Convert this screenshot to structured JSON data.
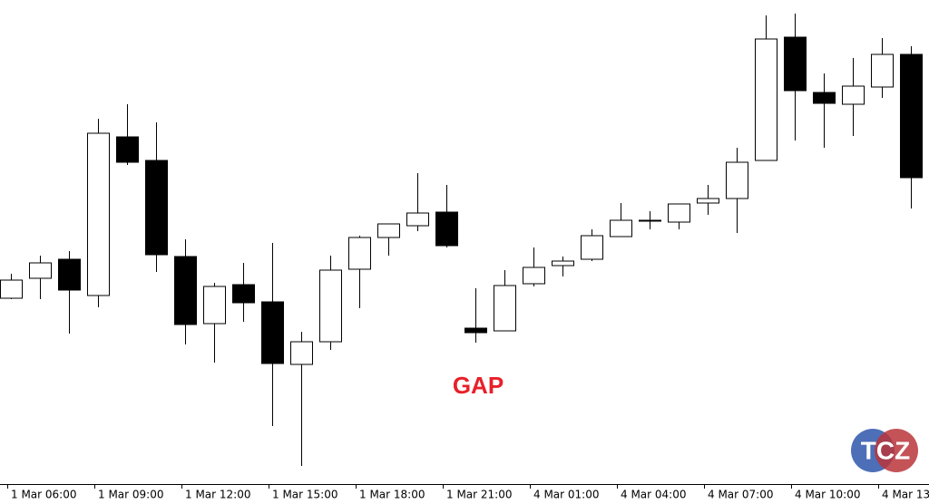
{
  "chart_data": {
    "type": "candlestick",
    "annotation": "GAP",
    "watermark": "TCZ",
    "categories": [
      "1 Mar 06:00",
      null,
      null,
      "1 Mar 09:00",
      null,
      null,
      "1 Mar 12:00",
      null,
      null,
      "1 Mar 15:00",
      null,
      null,
      "1 Mar 18:00",
      null,
      null,
      "1 Mar 21:00",
      null,
      null,
      "4 Mar 01:00",
      null,
      null,
      "4 Mar 04:00",
      null,
      null,
      "4 Mar 07:00",
      null,
      null,
      "4 Mar 10:00",
      null,
      null,
      "4 Mar 13:",
      null
    ],
    "open": [
      227,
      249,
      270,
      230,
      405,
      379,
      273,
      199,
      242,
      223,
      154,
      179,
      259,
      294,
      307,
      322,
      194,
      191,
      243,
      263,
      270,
      295,
      312,
      311,
      332,
      337,
      379,
      515,
      454,
      441,
      460,
      496
    ],
    "high": [
      254,
      274,
      279,
      425,
      441,
      421,
      292,
      244,
      266,
      288,
      190,
      274,
      296,
      309,
      365,
      352,
      238,
      258,
      283,
      273,
      303,
      332,
      323,
      331,
      352,
      393,
      539,
      541,
      475,
      492,
      514,
      505
    ],
    "low": [
      226,
      226,
      188,
      217,
      374,
      256,
      176,
      156,
      201,
      86,
      42,
      170,
      216,
      274,
      301,
      283,
      178,
      191,
      240,
      251,
      268,
      295,
      303,
      303,
      319,
      299,
      379,
      401,
      393,
      406,
      448,
      326
    ],
    "close": [
      247,
      266,
      236,
      409,
      377,
      275,
      198,
      240,
      222,
      155,
      179,
      258,
      294,
      309,
      321,
      285,
      189,
      241,
      261,
      268,
      296,
      313,
      313,
      331,
      337,
      377,
      513,
      456,
      442,
      461,
      496,
      360
    ],
    "ylim": [
      0,
      556
    ],
    "up_color": "#ffffff",
    "down_color": "#000000",
    "annotation_color": "#e8202a"
  }
}
